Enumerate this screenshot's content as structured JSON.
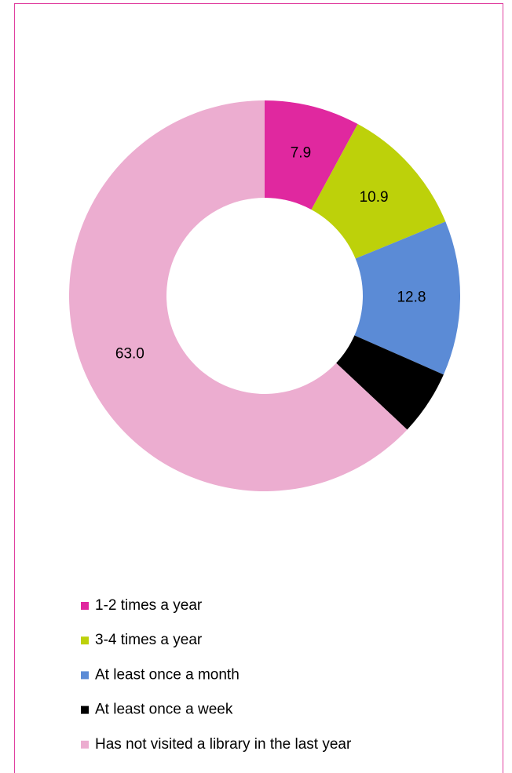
{
  "chart_data": {
    "type": "donut",
    "categories": [
      "1-2 times a year",
      "3-4 times a year",
      "At least once a month",
      "At least once a week",
      "Has not visited a library in the last year"
    ],
    "values": [
      7.9,
      10.9,
      12.8,
      5.4,
      63.0
    ],
    "value_labels": [
      "7.9",
      "10.9",
      "12.8",
      null,
      "63.0"
    ],
    "colors": [
      "#e0289f",
      "#bdd10a",
      "#5b8bd6",
      "#000000",
      "#ecadd0"
    ]
  }
}
